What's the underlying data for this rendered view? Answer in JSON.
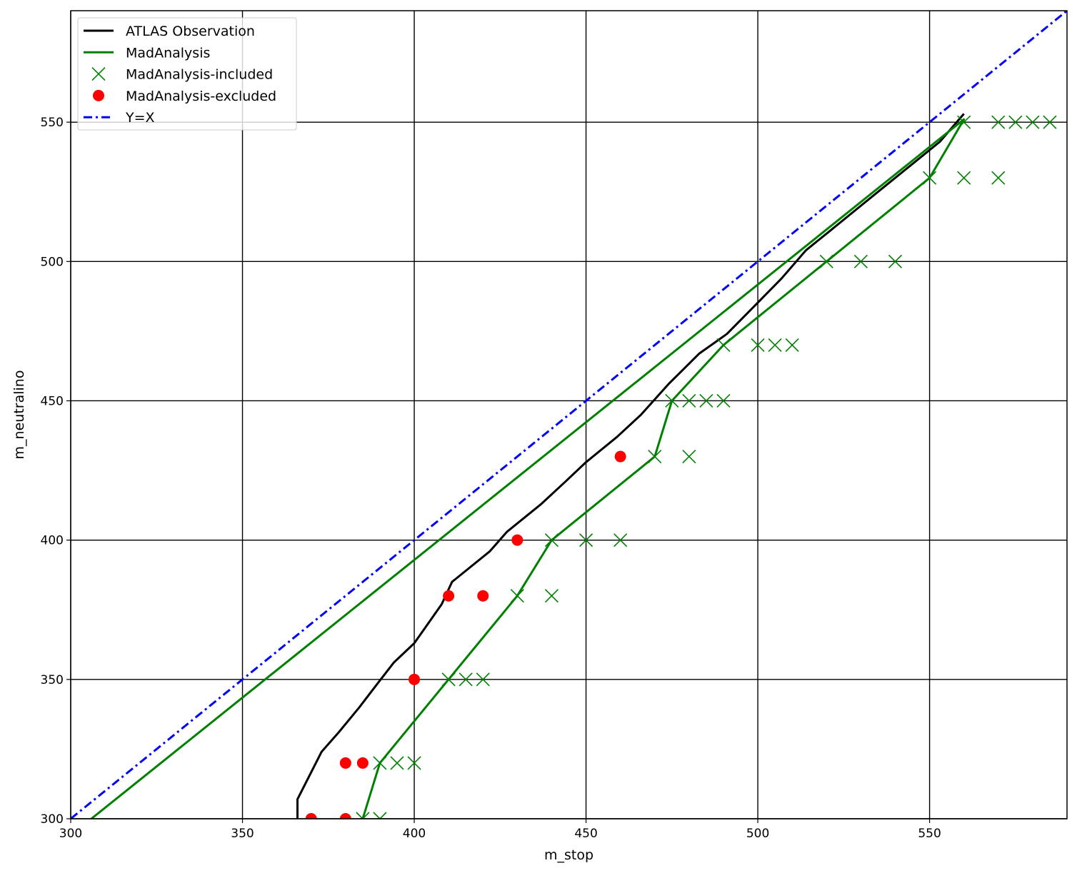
{
  "chart_data": {
    "type": "line",
    "xlabel": "m_stop",
    "ylabel": "m_neutralino",
    "xlim": [
      300,
      590
    ],
    "ylim": [
      300,
      590
    ],
    "grid": true,
    "legend_position": "top-left",
    "x_ticks": [
      300,
      350,
      400,
      450,
      500,
      550
    ],
    "y_ticks": [
      300,
      350,
      400,
      450,
      500,
      550
    ],
    "series": [
      {
        "name": "ATLAS Observation",
        "kind": "line",
        "color": "#000000",
        "points": [
          [
            366,
            300
          ],
          [
            366,
            307
          ],
          [
            373,
            324
          ],
          [
            378,
            331
          ],
          [
            384,
            340
          ],
          [
            389,
            348
          ],
          [
            394,
            356
          ],
          [
            400,
            363
          ],
          [
            404,
            370
          ],
          [
            408,
            377
          ],
          [
            411,
            385
          ],
          [
            422,
            396
          ],
          [
            427,
            403
          ],
          [
            437,
            413
          ],
          [
            444,
            421
          ],
          [
            450,
            428
          ],
          [
            459,
            437
          ],
          [
            466,
            445
          ],
          [
            474,
            456
          ],
          [
            483,
            467
          ],
          [
            491,
            474
          ],
          [
            499,
            484
          ],
          [
            507,
            494
          ],
          [
            514,
            504
          ],
          [
            521,
            511
          ],
          [
            528,
            518
          ],
          [
            535,
            525
          ],
          [
            543,
            533
          ],
          [
            550,
            540
          ],
          [
            553,
            543
          ],
          [
            560,
            553
          ]
        ]
      },
      {
        "name": "MadAnalysis",
        "kind": "line",
        "color": "#008000",
        "points": [
          [
            306,
            300
          ],
          [
            560,
            551
          ],
          [
            550,
            530
          ],
          [
            490,
            470
          ],
          [
            475,
            450
          ],
          [
            470,
            430
          ],
          [
            440,
            400
          ],
          [
            430,
            380
          ],
          [
            410,
            350
          ],
          [
            390,
            320
          ],
          [
            385,
            300
          ]
        ]
      },
      {
        "name": "MadAnalysis-included",
        "kind": "x-marker",
        "color": "#008000",
        "points": [
          [
            385,
            300
          ],
          [
            390,
            300
          ],
          [
            390,
            320
          ],
          [
            395,
            320
          ],
          [
            400,
            320
          ],
          [
            410,
            350
          ],
          [
            415,
            350
          ],
          [
            420,
            350
          ],
          [
            430,
            380
          ],
          [
            440,
            380
          ],
          [
            440,
            400
          ],
          [
            450,
            400
          ],
          [
            460,
            400
          ],
          [
            470,
            430
          ],
          [
            480,
            430
          ],
          [
            475,
            450
          ],
          [
            480,
            450
          ],
          [
            485,
            450
          ],
          [
            490,
            450
          ],
          [
            490,
            470
          ],
          [
            500,
            470
          ],
          [
            505,
            470
          ],
          [
            510,
            470
          ],
          [
            520,
            500
          ],
          [
            530,
            500
          ],
          [
            540,
            500
          ],
          [
            550,
            530
          ],
          [
            560,
            530
          ],
          [
            570,
            530
          ],
          [
            560,
            550
          ],
          [
            570,
            550
          ],
          [
            575,
            550
          ],
          [
            580,
            550
          ],
          [
            585,
            550
          ]
        ]
      },
      {
        "name": "MadAnalysis-excluded",
        "kind": "dot-marker",
        "color": "#ff0000",
        "points": [
          [
            370,
            300
          ],
          [
            380,
            300
          ],
          [
            380,
            320
          ],
          [
            385,
            320
          ],
          [
            400,
            350
          ],
          [
            410,
            380
          ],
          [
            420,
            380
          ],
          [
            430,
            400
          ],
          [
            460,
            430
          ]
        ]
      },
      {
        "name": "Y=X",
        "kind": "dashdot-line",
        "color": "#0000ff",
        "points": [
          [
            300,
            300
          ],
          [
            590,
            590
          ]
        ]
      }
    ]
  }
}
